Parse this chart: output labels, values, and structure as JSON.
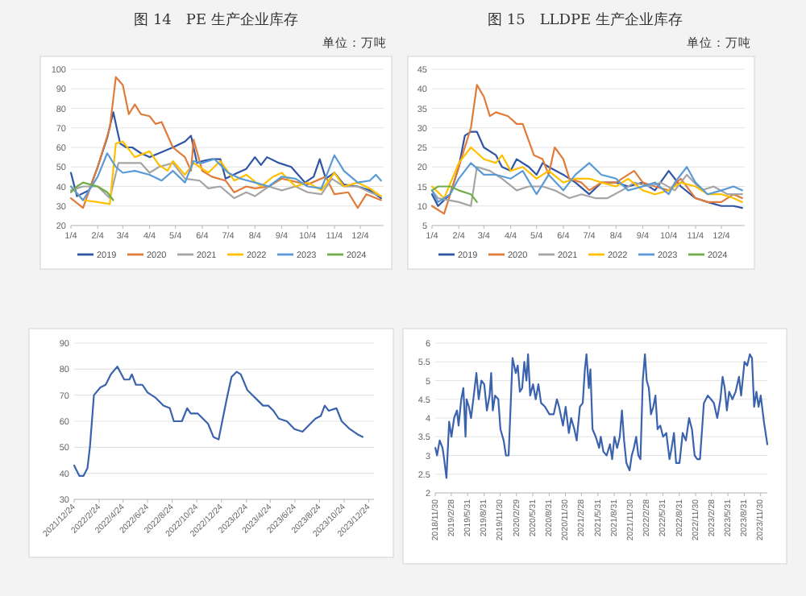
{
  "chart_data": [
    {
      "type": "line",
      "title": "图 14　PE 生产企业库存",
      "subtitle": "单位：万吨",
      "grid": "y",
      "legend": "bottom",
      "xlim": [
        "--01-04",
        "--12-31"
      ],
      "ylim": [
        20,
        100
      ],
      "yticks": [
        20,
        30,
        40,
        50,
        60,
        70,
        80,
        90,
        100
      ],
      "xticks": [
        {
          "value": "--01-04",
          "label": "1/4"
        },
        {
          "value": "--02-04",
          "label": "2/4"
        },
        {
          "value": "--03-04",
          "label": "3/4"
        },
        {
          "value": "--04-04",
          "label": "4/4"
        },
        {
          "value": "--05-04",
          "label": "5/4"
        },
        {
          "value": "--06-04",
          "label": "6/4"
        },
        {
          "value": "--07-04",
          "label": "7/4"
        },
        {
          "value": "--08-04",
          "label": "8/4"
        },
        {
          "value": "--09-04",
          "label": "9/4"
        },
        {
          "value": "--10-04",
          "label": "10/4"
        },
        {
          "value": "--11-04",
          "label": "11/4"
        },
        {
          "value": "--12-04",
          "label": "12/4"
        }
      ],
      "series": [
        {
          "name": "2019",
          "color": "#2f55a4",
          "x": [
            "--01-04",
            "--01-11",
            "--01-25",
            "--02-04",
            "--02-15",
            "--02-22",
            "--03-01",
            "--03-08",
            "--03-15",
            "--03-25",
            "--04-04",
            "--04-15",
            "--05-01",
            "--05-15",
            "--05-22",
            "--05-29",
            "--06-04",
            "--06-15",
            "--06-25",
            "--07-01",
            "--07-15",
            "--07-25",
            "--08-04",
            "--08-11",
            "--08-18",
            "--09-01",
            "--09-15",
            "--10-01",
            "--10-11",
            "--10-18",
            "--10-25",
            "--11-04",
            "--11-15",
            "--12-01",
            "--12-15",
            "--12-28"
          ],
          "values": [
            47,
            35,
            38,
            50,
            65,
            78,
            62,
            60,
            60,
            57,
            55,
            57,
            60,
            63,
            66,
            52,
            53,
            54,
            54,
            44,
            47,
            49,
            55,
            51,
            55,
            52,
            50,
            42,
            45,
            54,
            44,
            47,
            41,
            40,
            38,
            34
          ]
        },
        {
          "name": "2020",
          "color": "#e07b39",
          "x": [
            "--01-04",
            "--01-18",
            "--02-04",
            "--02-18",
            "--02-25",
            "--03-04",
            "--03-11",
            "--03-18",
            "--03-25",
            "--04-04",
            "--04-11",
            "--04-18",
            "--05-01",
            "--05-15",
            "--05-22",
            "--05-25",
            "--06-04",
            "--06-15",
            "--07-01",
            "--07-11",
            "--07-25",
            "--08-04",
            "--08-20",
            "--09-04",
            "--10-04",
            "--10-25",
            "--11-04",
            "--11-20",
            "--12-01",
            "--12-11",
            "--12-28"
          ],
          "values": [
            34,
            29,
            50,
            70,
            96,
            92,
            77,
            82,
            77,
            76,
            72,
            73,
            60,
            55,
            48,
            64,
            48,
            45,
            43,
            37,
            40,
            39,
            40,
            44,
            41,
            45,
            36,
            37,
            29,
            36,
            33
          ]
        },
        {
          "name": "2021",
          "color": "#a5a5a5",
          "x": [
            "--01-04",
            "--01-18",
            "--02-04",
            "--02-18",
            "--02-28",
            "--03-11",
            "--03-25",
            "--04-04",
            "--04-15",
            "--05-01",
            "--05-15",
            "--06-01",
            "--06-11",
            "--06-25",
            "--07-11",
            "--07-25",
            "--08-04",
            "--08-20",
            "--09-04",
            "--09-20",
            "--10-04",
            "--10-20",
            "--11-01",
            "--11-15",
            "--12-01",
            "--12-15",
            "--12-28"
          ],
          "values": [
            38,
            40,
            40,
            34,
            52,
            52,
            52,
            47,
            50,
            52,
            44,
            43,
            39,
            40,
            34,
            37,
            35,
            40,
            38,
            40,
            37,
            36,
            44,
            40,
            40,
            37,
            35
          ]
        },
        {
          "name": "2022",
          "color": "#ffc000",
          "x": [
            "--01-04",
            "--01-18",
            "--02-04",
            "--02-18",
            "--02-25",
            "--03-04",
            "--03-18",
            "--04-04",
            "--04-15",
            "--04-25",
            "--05-01",
            "--05-15",
            "--05-25",
            "--06-11",
            "--06-25",
            "--07-11",
            "--07-25",
            "--08-11",
            "--08-25",
            "--09-04",
            "--09-20",
            "--10-04",
            "--10-20",
            "--11-04",
            "--11-15",
            "--12-01",
            "--12-15",
            "--12-28"
          ],
          "values": [
            40,
            33,
            32,
            31,
            62,
            63,
            55,
            58,
            51,
            48,
            53,
            46,
            52,
            47,
            53,
            43,
            46,
            40,
            45,
            47,
            40,
            42,
            38,
            47,
            40,
            42,
            39,
            35
          ]
        },
        {
          "name": "2023",
          "color": "#5b9bd5",
          "x": [
            "--01-04",
            "--01-18",
            "--02-04",
            "--02-15",
            "--02-25",
            "--03-04",
            "--03-18",
            "--04-04",
            "--04-18",
            "--05-01",
            "--05-15",
            "--05-25",
            "--06-04",
            "--06-18",
            "--07-04",
            "--07-18",
            "--08-04",
            "--08-20",
            "--09-04",
            "--09-20",
            "--10-04",
            "--10-20",
            "--11-04",
            "--11-15",
            "--12-01",
            "--12-15",
            "--12-22",
            "--12-28"
          ],
          "values": [
            40,
            33,
            45,
            57,
            50,
            47,
            48,
            46,
            43,
            48,
            42,
            53,
            52,
            54,
            47,
            44,
            42,
            40,
            45,
            44,
            40,
            39,
            56,
            48,
            42,
            43,
            46,
            43
          ]
        },
        {
          "name": "2024",
          "color": "#70ad47",
          "x": [
            "--01-04",
            "--01-11",
            "--01-18",
            "--02-04",
            "--02-15",
            "--02-22"
          ],
          "values": [
            37,
            40,
            42,
            40,
            37,
            33
          ]
        }
      ]
    },
    {
      "type": "line",
      "title": "图 15　LLDPE 生产企业库存",
      "subtitle": "单位：万吨",
      "grid": "y",
      "legend": "bottom",
      "xlim": [
        "--01-04",
        "--12-31"
      ],
      "ylim": [
        5,
        45
      ],
      "yticks": [
        5,
        10,
        15,
        20,
        25,
        30,
        35,
        40,
        45
      ],
      "xticks": [
        {
          "value": "--01-04",
          "label": "1/4"
        },
        {
          "value": "--02-04",
          "label": "2/4"
        },
        {
          "value": "--03-04",
          "label": "3/4"
        },
        {
          "value": "--04-04",
          "label": "4/4"
        },
        {
          "value": "--05-04",
          "label": "5/4"
        },
        {
          "value": "--06-04",
          "label": "6/4"
        },
        {
          "value": "--07-04",
          "label": "7/4"
        },
        {
          "value": "--08-04",
          "label": "8/4"
        },
        {
          "value": "--09-04",
          "label": "9/4"
        },
        {
          "value": "--10-04",
          "label": "10/4"
        },
        {
          "value": "--11-04",
          "label": "11/4"
        },
        {
          "value": "--12-04",
          "label": "12/4"
        }
      ],
      "series": [
        {
          "name": "2019",
          "color": "#2f55a4",
          "x": [
            "--01-04",
            "--01-11",
            "--01-25",
            "--02-04",
            "--02-11",
            "--02-18",
            "--02-25",
            "--03-04",
            "--03-18",
            "--03-25",
            "--04-04",
            "--04-11",
            "--04-25",
            "--05-04",
            "--05-11",
            "--05-18",
            "--06-04",
            "--06-18",
            "--07-04",
            "--07-18",
            "--08-04",
            "--08-18",
            "--09-04",
            "--09-18",
            "--10-04",
            "--10-18",
            "--11-04",
            "--11-18",
            "--12-04",
            "--12-18",
            "--12-28"
          ],
          "values": [
            13,
            10,
            13,
            20,
            28,
            29,
            29,
            25,
            23,
            20,
            19,
            22,
            20,
            18,
            21,
            20,
            18,
            16,
            13,
            16,
            16,
            15,
            16,
            14,
            19,
            15,
            12,
            11,
            10,
            10,
            9.5
          ]
        },
        {
          "name": "2020",
          "color": "#e07b39",
          "x": [
            "--01-04",
            "--01-18",
            "--02-04",
            "--02-18",
            "--02-25",
            "--03-04",
            "--03-11",
            "--03-18",
            "--04-01",
            "--04-11",
            "--04-18",
            "--05-01",
            "--05-11",
            "--05-18",
            "--05-25",
            "--06-04",
            "--06-11",
            "--06-25",
            "--07-04",
            "--07-18",
            "--08-04",
            "--08-18",
            "--08-25",
            "--09-04",
            "--09-18",
            "--10-04",
            "--10-18",
            "--11-04",
            "--11-18",
            "--12-04",
            "--12-18",
            "--12-28"
          ],
          "values": [
            10,
            8,
            20,
            30,
            41,
            38,
            33,
            34,
            33,
            31,
            31,
            23,
            22,
            18,
            25,
            22,
            17,
            16,
            14,
            16,
            16,
            18,
            19,
            16,
            15,
            14,
            17,
            12,
            11,
            11,
            13,
            12
          ]
        },
        {
          "name": "2021",
          "color": "#a5a5a5",
          "x": [
            "--01-04",
            "--01-11",
            "--02-04",
            "--02-18",
            "--02-25",
            "--03-11",
            "--03-25",
            "--04-11",
            "--04-25",
            "--05-11",
            "--05-25",
            "--06-11",
            "--06-25",
            "--07-11",
            "--07-25",
            "--08-11",
            "--08-25",
            "--09-11",
            "--09-25",
            "--10-11",
            "--10-25",
            "--11-11",
            "--11-25",
            "--12-11",
            "--12-28"
          ],
          "values": [
            14,
            12,
            11,
            10,
            20,
            19,
            17,
            14,
            15,
            15,
            14,
            12,
            13,
            12,
            12,
            14,
            16,
            15,
            16,
            14,
            18,
            14,
            15,
            13,
            13
          ]
        },
        {
          "name": "2022",
          "color": "#ffc000",
          "x": [
            "--01-04",
            "--01-18",
            "--02-04",
            "--02-18",
            "--03-04",
            "--03-18",
            "--03-25",
            "--04-04",
            "--04-18",
            "--05-04",
            "--05-18",
            "--06-04",
            "--06-18",
            "--07-04",
            "--07-18",
            "--08-04",
            "--08-18",
            "--09-04",
            "--09-18",
            "--10-04",
            "--10-18",
            "--11-04",
            "--11-18",
            "--12-04",
            "--12-18",
            "--12-28"
          ],
          "values": [
            15,
            12,
            21,
            25,
            22,
            21,
            23,
            19,
            20,
            17,
            19,
            16,
            17,
            17,
            16,
            15,
            17,
            14,
            13,
            14,
            16,
            15,
            13,
            13,
            12,
            11
          ]
        },
        {
          "name": "2023",
          "color": "#5b9bd5",
          "x": [
            "--01-04",
            "--01-11",
            "--01-25",
            "--02-04",
            "--02-18",
            "--03-04",
            "--03-18",
            "--04-04",
            "--04-18",
            "--05-04",
            "--05-18",
            "--06-04",
            "--06-18",
            "--07-04",
            "--07-18",
            "--08-04",
            "--08-18",
            "--09-04",
            "--09-18",
            "--10-04",
            "--10-11",
            "--10-25",
            "--11-04",
            "--11-18",
            "--12-04",
            "--12-18",
            "--12-28"
          ],
          "values": [
            14,
            11,
            13,
            17,
            21,
            18,
            18,
            17,
            19,
            13,
            18,
            14,
            18,
            21,
            18,
            17,
            14,
            15,
            16,
            13,
            16,
            20,
            16,
            13,
            14,
            15,
            14
          ]
        },
        {
          "name": "2024",
          "color": "#70ad47",
          "x": [
            "--01-04",
            "--01-11",
            "--01-25",
            "--02-04",
            "--02-18",
            "--02-25"
          ],
          "values": [
            14,
            15,
            15,
            14,
            13,
            11
          ]
        }
      ]
    },
    {
      "type": "line",
      "grid": "y",
      "color": "#3a62ad",
      "xlim": [
        "2021-12-24",
        "2024-01-06"
      ],
      "ylim": [
        30,
        90
      ],
      "yticks": [
        30,
        40,
        50,
        60,
        70,
        80,
        90
      ],
      "xticks": [
        {
          "value": "2021-12-24",
          "label": "2021/12/24"
        },
        {
          "value": "2022-02-24",
          "label": "2022/2/24"
        },
        {
          "value": "2022-04-24",
          "label": "2022/4/24"
        },
        {
          "value": "2022-06-24",
          "label": "2022/6/24"
        },
        {
          "value": "2022-08-24",
          "label": "2022/8/24"
        },
        {
          "value": "2022-10-24",
          "label": "2022/10/24"
        },
        {
          "value": "2022-12-24",
          "label": "2022/12/24"
        },
        {
          "value": "2023-02-24",
          "label": "2023/2/24"
        },
        {
          "value": "2023-04-24",
          "label": "2023/4/24"
        },
        {
          "value": "2023-06-24",
          "label": "2023/6/24"
        },
        {
          "value": "2023-08-24",
          "label": "2023/8/24"
        },
        {
          "value": "2023-10-24",
          "label": "2023/10/24"
        },
        {
          "value": "2023-12-24",
          "label": "2023/12/24"
        }
      ],
      "x": [
        "2021-12-24",
        "2022-01-06",
        "2022-01-16",
        "2022-01-26",
        "2022-02-01",
        "2022-02-11",
        "2022-02-27",
        "2022-03-12",
        "2022-03-25",
        "2022-04-10",
        "2022-04-27",
        "2022-05-10",
        "2022-05-16",
        "2022-05-26",
        "2022-06-11",
        "2022-06-24",
        "2022-07-14",
        "2022-08-02",
        "2022-08-18",
        "2022-08-28",
        "2022-09-17",
        "2022-09-30",
        "2022-10-09",
        "2022-10-26",
        "2022-11-08",
        "2022-11-21",
        "2022-12-04",
        "2022-12-17",
        "2022-12-26",
        "2023-01-08",
        "2023-01-18",
        "2023-01-31",
        "2023-02-10",
        "2023-02-26",
        "2023-03-11",
        "2023-03-24",
        "2023-04-06",
        "2023-04-19",
        "2023-05-02",
        "2023-05-15",
        "2023-06-04",
        "2023-06-23",
        "2023-07-13",
        "2023-08-01",
        "2023-08-14",
        "2023-08-27",
        "2023-09-06",
        "2023-09-16",
        "2023-10-05",
        "2023-10-18",
        "2023-11-07",
        "2023-11-26",
        "2023-12-09"
      ],
      "values": [
        43,
        39,
        39,
        42,
        50,
        70,
        73,
        74,
        78,
        81,
        76,
        76,
        78,
        74,
        74,
        71,
        69,
        66,
        65,
        60,
        60,
        65,
        63,
        63,
        61,
        59,
        54,
        53,
        60,
        70,
        77,
        79,
        78,
        72,
        70,
        68,
        66,
        66,
        64,
        61,
        60,
        57,
        56,
        59,
        61,
        62,
        66,
        64,
        65,
        60,
        57,
        55,
        54
      ]
    },
    {
      "type": "line",
      "grid": "y",
      "color": "#3a62ad",
      "xlim": [
        "2018-11-30",
        "2024-01-07"
      ],
      "ylim": [
        2,
        6
      ],
      "yticks": [
        2,
        2.5,
        3,
        3.5,
        4,
        4.5,
        5,
        5.5,
        6
      ],
      "xticks": [
        {
          "value": "2018-11-30",
          "label": "2018/11/30"
        },
        {
          "value": "2019-02-28",
          "label": "2019/2/28"
        },
        {
          "value": "2019-05-31",
          "label": "2019/5/31"
        },
        {
          "value": "2019-08-31",
          "label": "2019/8/31"
        },
        {
          "value": "2019-11-30",
          "label": "2019/11/30"
        },
        {
          "value": "2020-02-29",
          "label": "2020/2/29"
        },
        {
          "value": "2020-05-31",
          "label": "2020/5/31"
        },
        {
          "value": "2020-08-31",
          "label": "2020/8/31"
        },
        {
          "value": "2020-11-30",
          "label": "2020/11/30"
        },
        {
          "value": "2021-02-28",
          "label": "2021/2/28"
        },
        {
          "value": "2021-05-31",
          "label": "2021/5/31"
        },
        {
          "value": "2021-08-31",
          "label": "2021/8/31"
        },
        {
          "value": "2021-11-30",
          "label": "2021/11/30"
        },
        {
          "value": "2022-02-28",
          "label": "2022/2/28"
        },
        {
          "value": "2022-05-31",
          "label": "2022/5/31"
        },
        {
          "value": "2022-08-31",
          "label": "2022/8/31"
        },
        {
          "value": "2022-11-30",
          "label": "2022/11/30"
        },
        {
          "value": "2023-02-28",
          "label": "2023/2/28"
        },
        {
          "value": "2023-05-31",
          "label": "2023/5/31"
        },
        {
          "value": "2023-08-31",
          "label": "2023/8/31"
        },
        {
          "value": "2023-11-30",
          "label": "2023/11/30"
        }
      ],
      "x": [
        "2018-12-01",
        "2018-12-10",
        "2018-12-25",
        "2019-01-10",
        "2019-01-19",
        "2019-02-01",
        "2019-02-16",
        "2019-03-01",
        "2019-03-16",
        "2019-04-01",
        "2019-04-10",
        "2019-04-25",
        "2019-05-07",
        "2019-05-19",
        "2019-05-25",
        "2019-06-07",
        "2019-06-19",
        "2019-07-07",
        "2019-07-19",
        "2019-08-01",
        "2019-08-16",
        "2019-09-01",
        "2019-09-16",
        "2019-10-01",
        "2019-10-10",
        "2019-10-19",
        "2019-11-01",
        "2019-11-19",
        "2019-12-01",
        "2019-12-19",
        "2020-01-01",
        "2020-01-16",
        "2020-02-07",
        "2020-02-25",
        "2020-03-07",
        "2020-03-19",
        "2020-04-01",
        "2020-04-13",
        "2020-04-25",
        "2020-05-04",
        "2020-05-16",
        "2020-06-01",
        "2020-06-16",
        "2020-07-01",
        "2020-07-16",
        "2020-08-07",
        "2020-09-01",
        "2020-09-25",
        "2020-10-13",
        "2020-10-25",
        "2020-11-16",
        "2020-12-01",
        "2020-12-19",
        "2021-01-01",
        "2021-01-19",
        "2021-02-01",
        "2021-02-19",
        "2021-03-07",
        "2021-03-19",
        "2021-03-28",
        "2021-04-10",
        "2021-04-19",
        "2021-05-01",
        "2021-05-19",
        "2021-06-07",
        "2021-06-16",
        "2021-07-01",
        "2021-07-19",
        "2021-08-07",
        "2021-08-19",
        "2021-09-01",
        "2021-09-16",
        "2021-10-01",
        "2021-10-13",
        "2021-10-25",
        "2021-11-07",
        "2021-11-25",
        "2021-12-07",
        "2021-12-19",
        "2022-01-01",
        "2022-01-13",
        "2022-01-25",
        "2022-02-07",
        "2022-02-19",
        "2022-03-01",
        "2022-03-13",
        "2022-03-25",
        "2022-04-07",
        "2022-04-19",
        "2022-05-01",
        "2022-05-16",
        "2022-06-01",
        "2022-06-19",
        "2022-07-07",
        "2022-07-19",
        "2022-08-01",
        "2022-08-13",
        "2022-09-01",
        "2022-09-19",
        "2022-10-07",
        "2022-10-25",
        "2022-11-10",
        "2022-11-25",
        "2022-12-10",
        "2022-12-25",
        "2023-01-16",
        "2023-02-07",
        "2023-02-25",
        "2023-03-13",
        "2023-04-01",
        "2023-04-19",
        "2023-05-01",
        "2023-05-13",
        "2023-05-25",
        "2023-06-07",
        "2023-06-25",
        "2023-07-13",
        "2023-08-01",
        "2023-08-13",
        "2023-09-01",
        "2023-09-16",
        "2023-10-01",
        "2023-10-13",
        "2023-10-25",
        "2023-11-07",
        "2023-11-19",
        "2023-12-01",
        "2023-12-19",
        "2024-01-07"
      ],
      "values": [
        3.2,
        3.0,
        3.4,
        3.2,
        2.9,
        2.4,
        3.9,
        3.5,
        4.0,
        4.2,
        3.8,
        4.5,
        4.8,
        3.5,
        4.5,
        4.3,
        4.0,
        4.7,
        5.2,
        4.5,
        5.0,
        4.9,
        4.2,
        4.6,
        5.2,
        4.2,
        4.6,
        4.5,
        3.7,
        3.4,
        3.0,
        3.0,
        5.6,
        5.2,
        5.4,
        4.7,
        4.8,
        5.5,
        5.0,
        5.7,
        4.6,
        4.9,
        4.5,
        4.9,
        4.4,
        4.3,
        4.1,
        4.1,
        4.5,
        4.3,
        3.8,
        4.3,
        3.6,
        4.0,
        3.7,
        3.4,
        4.3,
        4.4,
        5.3,
        5.7,
        4.8,
        5.3,
        3.7,
        3.5,
        3.2,
        3.5,
        3.1,
        3.0,
        3.3,
        2.9,
        3.5,
        3.2,
        3.5,
        4.2,
        3.4,
        2.8,
        2.6,
        3.0,
        3.2,
        3.5,
        3.0,
        2.9,
        5.0,
        5.7,
        5.0,
        4.8,
        4.1,
        4.3,
        4.6,
        3.7,
        3.8,
        3.5,
        3.6,
        2.9,
        3.2,
        3.6,
        2.8,
        2.8,
        3.6,
        3.4,
        4.0,
        3.7,
        3.0,
        2.9,
        2.9,
        4.4,
        4.6,
        4.5,
        4.4,
        4.0,
        4.5,
        5.1,
        4.8,
        4.2,
        4.7,
        4.5,
        4.7,
        5.1,
        4.6,
        5.5,
        5.4,
        5.7,
        5.6,
        4.3,
        4.7,
        4.3,
        4.6,
        3.9,
        3.3
      ]
    }
  ]
}
